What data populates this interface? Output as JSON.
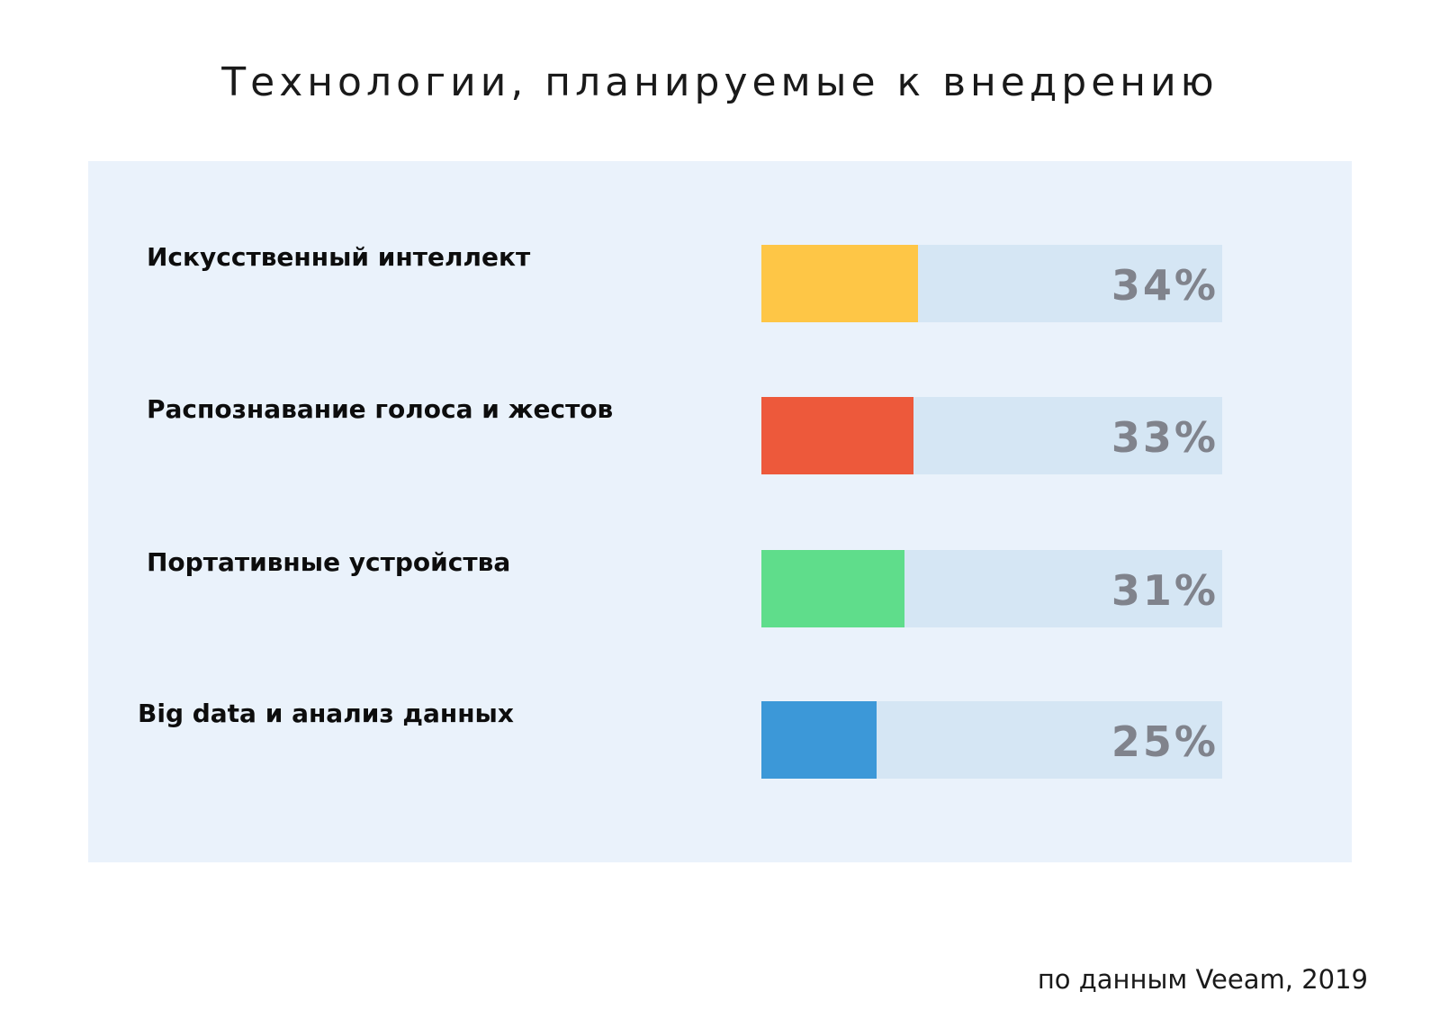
{
  "chart_data": {
    "type": "bar",
    "orientation": "horizontal",
    "title": "Технологии, планируемые к внедрению",
    "categories": [
      "Искусственный интеллект",
      "Распознавание голоса и жестов",
      "Портативные устройства",
      "Big data и анализ данных"
    ],
    "values": [
      34,
      33,
      31,
      25
    ],
    "value_labels": [
      "34%",
      "33%",
      "31%",
      "25%"
    ],
    "colors": [
      "#fec646",
      "#ed593b",
      "#5fdd8b",
      "#3c98d8"
    ],
    "track_color": "#d5e6f4",
    "xlim": [
      0,
      100
    ],
    "grid": false,
    "legend": "none"
  },
  "source": "по данным Veeam, 2019"
}
